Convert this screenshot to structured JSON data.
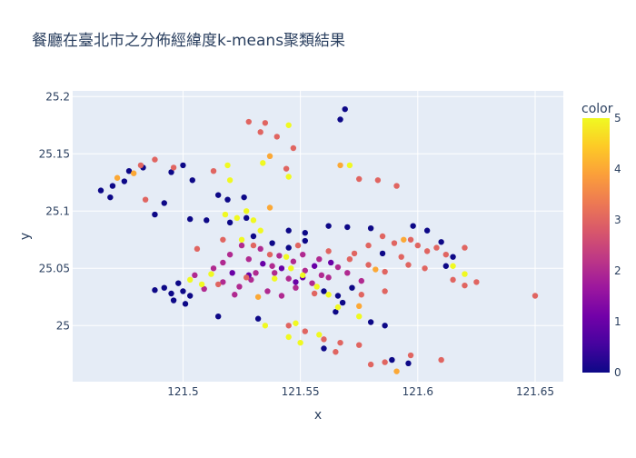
{
  "chart_data": {
    "type": "scatter",
    "title": "餐廳在臺北市之分佈經緯度k-means聚類結果",
    "xlabel": "x",
    "ylabel": "y",
    "xlim": [
      121.453,
      121.662
    ],
    "ylim": [
      24.951,
      25.205
    ],
    "x_ticks": [
      121.5,
      121.55,
      121.6,
      121.65
    ],
    "x_tick_labels": [
      "121.5",
      "121.55",
      "121.6",
      "121.65"
    ],
    "y_ticks": [
      25.0,
      25.05,
      25.1,
      25.15,
      25.2
    ],
    "y_tick_labels": [
      "25",
      "25.05",
      "25.1",
      "25.15",
      "25.2"
    ],
    "colorbar": {
      "title": "color",
      "range": [
        0,
        5
      ],
      "ticks": [
        0,
        1,
        2,
        3,
        4,
        5
      ],
      "tick_labels": [
        "0",
        "1",
        "2",
        "3",
        "4",
        "5"
      ],
      "colorscale": [
        "#0d0887",
        "#46039f",
        "#7201a8",
        "#9c179e",
        "#bd3786",
        "#d8576b",
        "#ed7953",
        "#fb9f3a",
        "#fdca26",
        "#f0f921"
      ]
    },
    "background": "#e5ecf6",
    "grid": true,
    "points": [
      [
        121.524,
        25.034,
        2
      ],
      [
        121.531,
        25.046,
        2
      ],
      [
        121.538,
        25.052,
        2
      ],
      [
        121.545,
        25.041,
        2
      ],
      [
        121.552,
        25.048,
        2
      ],
      [
        121.559,
        25.044,
        2
      ],
      [
        121.566,
        25.051,
        2
      ],
      [
        121.517,
        25.038,
        2
      ],
      [
        121.528,
        25.058,
        2
      ],
      [
        121.541,
        25.061,
        2
      ],
      [
        121.536,
        25.03,
        2
      ],
      [
        121.548,
        25.033,
        2
      ],
      [
        121.555,
        25.037,
        2
      ],
      [
        121.562,
        25.042,
        2
      ],
      [
        121.513,
        25.05,
        2
      ],
      [
        121.52,
        25.062,
        2
      ],
      [
        121.533,
        25.067,
        2
      ],
      [
        121.547,
        25.056,
        2
      ],
      [
        121.57,
        25.046,
        2
      ],
      [
        121.576,
        25.039,
        2
      ],
      [
        121.509,
        25.032,
        2
      ],
      [
        121.522,
        25.027,
        2
      ],
      [
        121.542,
        25.026,
        2
      ],
      [
        121.558,
        25.058,
        2
      ],
      [
        121.529,
        25.04,
        2
      ],
      [
        121.517,
        25.055,
        2
      ],
      [
        121.539,
        25.046,
        2
      ],
      [
        121.551,
        25.062,
        2
      ],
      [
        121.505,
        25.044,
        2
      ],
      [
        121.525,
        25.07,
        2
      ],
      [
        121.5,
        25.03,
        0
      ],
      [
        121.495,
        25.028,
        0
      ],
      [
        121.492,
        25.033,
        0
      ],
      [
        121.498,
        25.037,
        0
      ],
      [
        121.503,
        25.026,
        0
      ],
      [
        121.488,
        25.031,
        0
      ],
      [
        121.496,
        25.022,
        0
      ],
      [
        121.501,
        25.019,
        0
      ],
      [
        121.538,
        25.072,
        0
      ],
      [
        121.545,
        25.068,
        0
      ],
      [
        121.552,
        25.074,
        0
      ],
      [
        121.53,
        25.078,
        0
      ],
      [
        121.56,
        25.03,
        0
      ],
      [
        121.566,
        25.026,
        0
      ],
      [
        121.572,
        25.033,
        0
      ],
      [
        121.568,
        25.02,
        0
      ],
      [
        121.545,
        25.083,
        0
      ],
      [
        121.552,
        25.081,
        0
      ],
      [
        121.52,
        25.09,
        0
      ],
      [
        121.527,
        25.094,
        0
      ],
      [
        121.519,
        25.11,
        0
      ],
      [
        121.526,
        25.112,
        0
      ],
      [
        121.515,
        25.114,
        0
      ],
      [
        121.5,
        25.14,
        0
      ],
      [
        121.495,
        25.134,
        0
      ],
      [
        121.504,
        25.127,
        0
      ],
      [
        121.465,
        25.118,
        0
      ],
      [
        121.47,
        25.122,
        0
      ],
      [
        121.475,
        25.126,
        0
      ],
      [
        121.469,
        25.112,
        0
      ],
      [
        121.477,
        25.135,
        0
      ],
      [
        121.483,
        25.138,
        0
      ],
      [
        121.492,
        25.107,
        0
      ],
      [
        121.488,
        25.097,
        0
      ],
      [
        121.503,
        25.093,
        0
      ],
      [
        121.51,
        25.092,
        0
      ],
      [
        121.567,
        25.18,
        0
      ],
      [
        121.569,
        25.189,
        0
      ],
      [
        121.562,
        25.087,
        0
      ],
      [
        121.57,
        25.086,
        0
      ],
      [
        121.58,
        25.085,
        0
      ],
      [
        121.598,
        25.087,
        0
      ],
      [
        121.604,
        25.083,
        0
      ],
      [
        121.61,
        25.073,
        0
      ],
      [
        121.615,
        25.06,
        0
      ],
      [
        121.612,
        25.052,
        0
      ],
      [
        121.585,
        25.063,
        0
      ],
      [
        121.58,
        25.003,
        0
      ],
      [
        121.586,
        25.0,
        0
      ],
      [
        121.565,
        25.012,
        0
      ],
      [
        121.56,
        24.98,
        0
      ],
      [
        121.596,
        24.967,
        0
      ],
      [
        121.589,
        24.97,
        0
      ],
      [
        121.532,
        25.006,
        0
      ],
      [
        121.515,
        25.008,
        0
      ],
      [
        121.548,
        25.038,
        1
      ],
      [
        121.534,
        25.054,
        1
      ],
      [
        121.542,
        25.05,
        1
      ],
      [
        121.528,
        25.044,
        1
      ],
      [
        121.556,
        25.052,
        1
      ],
      [
        121.521,
        25.046,
        1
      ],
      [
        121.563,
        25.055,
        1
      ],
      [
        121.551,
        25.042,
        1
      ],
      [
        121.597,
        25.075,
        3
      ],
      [
        121.6,
        25.07,
        3
      ],
      [
        121.604,
        25.065,
        3
      ],
      [
        121.59,
        25.072,
        3
      ],
      [
        121.585,
        25.078,
        3
      ],
      [
        121.579,
        25.07,
        3
      ],
      [
        121.573,
        25.063,
        3
      ],
      [
        121.593,
        25.06,
        3
      ],
      [
        121.608,
        25.068,
        3
      ],
      [
        121.612,
        25.062,
        3
      ],
      [
        121.603,
        25.05,
        3
      ],
      [
        121.615,
        25.04,
        3
      ],
      [
        121.62,
        25.035,
        3
      ],
      [
        121.625,
        25.038,
        3
      ],
      [
        121.62,
        25.068,
        3
      ],
      [
        121.586,
        25.047,
        3
      ],
      [
        121.579,
        25.053,
        3
      ],
      [
        121.596,
        25.053,
        3
      ],
      [
        121.586,
        25.03,
        3
      ],
      [
        121.576,
        25.027,
        3
      ],
      [
        121.65,
        25.026,
        3
      ],
      [
        121.535,
        25.177,
        3
      ],
      [
        121.533,
        25.169,
        3
      ],
      [
        121.54,
        25.165,
        3
      ],
      [
        121.547,
        25.155,
        3
      ],
      [
        121.544,
        25.137,
        3
      ],
      [
        121.528,
        25.178,
        3
      ],
      [
        121.575,
        25.128,
        3
      ],
      [
        121.583,
        25.127,
        3
      ],
      [
        121.591,
        25.122,
        3
      ],
      [
        121.488,
        25.145,
        3
      ],
      [
        121.482,
        25.14,
        3
      ],
      [
        121.484,
        25.11,
        3
      ],
      [
        121.496,
        25.138,
        3
      ],
      [
        121.513,
        25.135,
        3
      ],
      [
        121.545,
        25.0,
        3
      ],
      [
        121.552,
        24.995,
        3
      ],
      [
        121.56,
        24.988,
        3
      ],
      [
        121.567,
        24.985,
        3
      ],
      [
        121.575,
        24.983,
        3
      ],
      [
        121.58,
        24.966,
        3
      ],
      [
        121.586,
        24.968,
        3
      ],
      [
        121.597,
        24.974,
        3
      ],
      [
        121.61,
        24.97,
        3
      ],
      [
        121.565,
        24.977,
        3
      ],
      [
        121.53,
        25.07,
        3
      ],
      [
        121.517,
        25.075,
        3
      ],
      [
        121.506,
        25.067,
        3
      ],
      [
        121.562,
        25.065,
        3
      ],
      [
        121.571,
        25.058,
        3
      ],
      [
        121.527,
        25.042,
        3
      ],
      [
        121.515,
        25.036,
        3
      ],
      [
        121.537,
        25.062,
        3
      ],
      [
        121.549,
        25.07,
        3
      ],
      [
        121.556,
        25.028,
        3
      ],
      [
        121.525,
        25.075,
        5
      ],
      [
        121.53,
        25.092,
        5
      ],
      [
        121.523,
        25.094,
        5
      ],
      [
        121.527,
        25.1,
        5
      ],
      [
        121.518,
        25.097,
        5
      ],
      [
        121.533,
        25.083,
        5
      ],
      [
        121.544,
        25.06,
        5
      ],
      [
        121.551,
        25.044,
        5
      ],
      [
        121.539,
        25.041,
        5
      ],
      [
        121.546,
        25.05,
        5
      ],
      [
        121.557,
        25.034,
        5
      ],
      [
        121.562,
        25.027,
        5
      ],
      [
        121.548,
        25.002,
        5
      ],
      [
        121.545,
        24.99,
        5
      ],
      [
        121.55,
        24.985,
        5
      ],
      [
        121.558,
        24.992,
        5
      ],
      [
        121.535,
        25.0,
        5
      ],
      [
        121.503,
        25.04,
        5
      ],
      [
        121.508,
        25.036,
        5
      ],
      [
        121.512,
        25.045,
        5
      ],
      [
        121.545,
        25.175,
        5
      ],
      [
        121.545,
        25.13,
        5
      ],
      [
        121.534,
        25.142,
        5
      ],
      [
        121.52,
        25.127,
        5
      ],
      [
        121.519,
        25.14,
        5
      ],
      [
        121.571,
        25.14,
        5
      ],
      [
        121.575,
        25.008,
        5
      ],
      [
        121.566,
        25.016,
        5
      ],
      [
        121.62,
        25.045,
        5
      ],
      [
        121.615,
        25.052,
        5
      ],
      [
        121.479,
        25.133,
        4
      ],
      [
        121.472,
        25.129,
        4
      ],
      [
        121.567,
        25.14,
        4
      ],
      [
        121.537,
        25.148,
        4
      ],
      [
        121.537,
        25.103,
        4
      ],
      [
        121.582,
        25.049,
        4
      ],
      [
        121.575,
        25.017,
        4
      ],
      [
        121.594,
        25.075,
        4
      ],
      [
        121.532,
        25.025,
        4
      ],
      [
        121.591,
        24.96,
        4
      ]
    ]
  }
}
